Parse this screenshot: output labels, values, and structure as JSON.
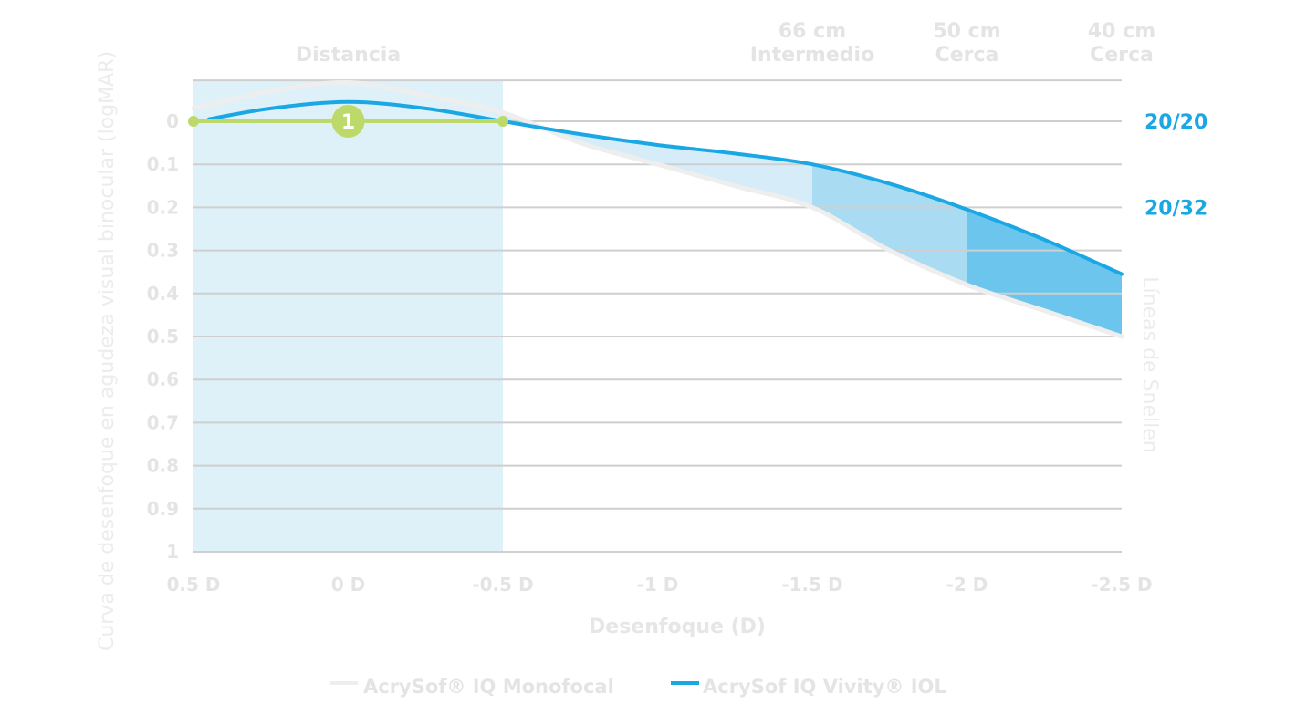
{
  "chart_data": {
    "type": "line",
    "xlabel": "Desenfoque (D)",
    "ylabel": "Curva de desenfoque en agudeza visual binocular (logMAR)",
    "y2label": "Líneas de Snellen",
    "xlim": [
      0.5,
      -2.5
    ],
    "ylim": [
      1,
      -0.1
    ],
    "x_ticks": [
      "0.5 D",
      "0 D",
      "-0.5 D",
      "-1 D",
      "-1.5 D",
      "-2 D",
      "-2.5 D"
    ],
    "x_tick_values": [
      0.5,
      0,
      -0.5,
      -1,
      -1.5,
      -2,
      -2.5
    ],
    "y_ticks": [
      "0",
      "0.1",
      "0.2",
      "0.3",
      "0.4",
      "0.5",
      "0.6",
      "0.7",
      "0.8",
      "0.9",
      "1"
    ],
    "y_tick_values": [
      0,
      0.1,
      0.2,
      0.3,
      0.4,
      0.5,
      0.6,
      0.7,
      0.8,
      0.9,
      1.0
    ],
    "top_grid_value": -0.095,
    "distance_region": {
      "label": "Distancia",
      "from": 0.5,
      "to": -0.5
    },
    "zone_labels": [
      {
        "line1": "66 cm",
        "line2": "Intermedio",
        "x": -1.5
      },
      {
        "line1": "50 cm",
        "line2": "Cerca",
        "x": -2
      },
      {
        "line1": "40 cm",
        "line2": "Cerca",
        "x": -2.5
      }
    ],
    "snellen_labels": [
      {
        "text": "20/20",
        "y": 0
      },
      {
        "text": "20/32",
        "y": 0.2
      }
    ],
    "series": [
      {
        "name": "AcrySof® IQ Monofocal",
        "color": "#eeeeee",
        "x": [
          0.5,
          0.25,
          0,
          -0.25,
          -0.5,
          -0.75,
          -1,
          -1.25,
          -1.5,
          -1.75,
          -2,
          -2.25,
          -2.5
        ],
        "y": [
          -0.03,
          -0.07,
          -0.09,
          -0.06,
          -0.02,
          0.05,
          0.1,
          0.15,
          0.2,
          0.3,
          0.38,
          0.44,
          0.5
        ]
      },
      {
        "name": "AcrySof IQ Vivity® IOL",
        "color": "#1aa8e4",
        "x": [
          0.45,
          0.25,
          0,
          -0.25,
          -0.5,
          -0.75,
          -1,
          -1.25,
          -1.5,
          -1.75,
          -2,
          -2.25,
          -2.5
        ],
        "y": [
          -0.005,
          -0.03,
          -0.045,
          -0.03,
          0.0,
          0.03,
          0.055,
          0.075,
          0.1,
          0.145,
          0.205,
          0.275,
          0.355
        ]
      }
    ],
    "baseline": {
      "color": "#bcd96a",
      "from": 0.5,
      "to": -0.5,
      "y": 0,
      "marker": {
        "x": 0,
        "label": "1"
      }
    },
    "shaded_bands": [
      {
        "from": -0.5,
        "to": -1.5,
        "color": "#d6ecf8"
      },
      {
        "from": -1.5,
        "to": -2,
        "color": "#a9dbf3"
      },
      {
        "from": -2,
        "to": -2.5,
        "color": "#6cc5ec"
      }
    ],
    "legend": [
      {
        "label": "AcrySof® IQ Monofocal",
        "color": "#eeeeee"
      },
      {
        "label": "AcrySof IQ Vivity® IOL",
        "color": "#1aa8e4"
      }
    ],
    "legend_position": "bottom-center",
    "grid": true
  }
}
